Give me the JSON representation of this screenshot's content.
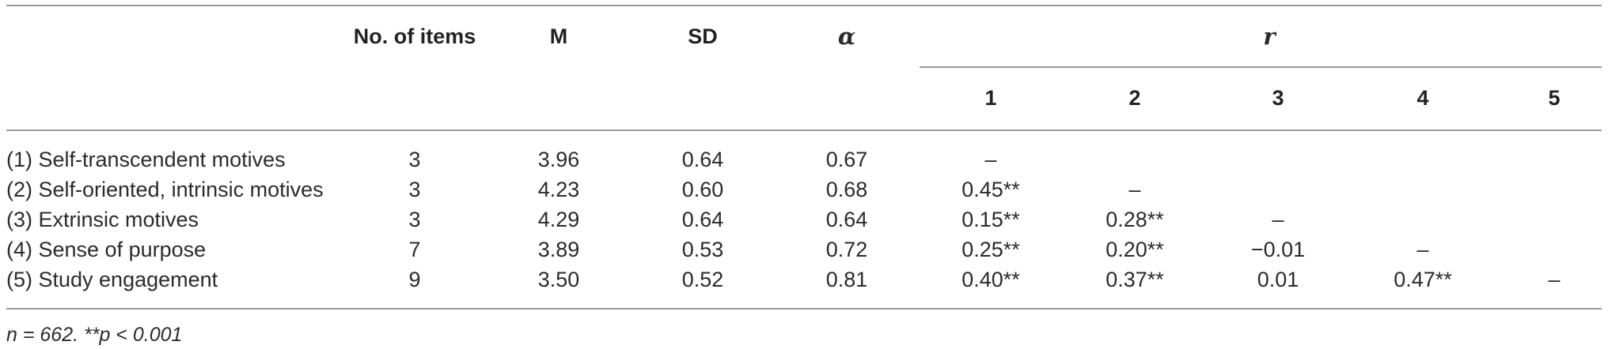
{
  "table": {
    "headers": {
      "items": "No. of items",
      "m": "M",
      "sd": "SD",
      "alpha": "α",
      "r": "r",
      "r_cols": [
        "1",
        "2",
        "3",
        "4",
        "5"
      ]
    },
    "rows": [
      {
        "label": "(1) Self-transcendent motives",
        "items": "3",
        "m": "3.96",
        "sd": "0.64",
        "alpha": "0.67",
        "r": [
          "–",
          "",
          "",
          "",
          ""
        ]
      },
      {
        "label": "(2) Self-oriented, intrinsic motives",
        "items": "3",
        "m": "4.23",
        "sd": "0.60",
        "alpha": "0.68",
        "r": [
          "0.45**",
          "–",
          "",
          "",
          ""
        ]
      },
      {
        "label": "(3) Extrinsic motives",
        "items": "3",
        "m": "4.29",
        "sd": "0.64",
        "alpha": "0.64",
        "r": [
          "0.15**",
          "0.28**",
          "–",
          "",
          ""
        ]
      },
      {
        "label": "(4) Sense of purpose",
        "items": "7",
        "m": "3.89",
        "sd": "0.53",
        "alpha": "0.72",
        "r": [
          "0.25**",
          "0.20**",
          "−0.01",
          "–",
          ""
        ]
      },
      {
        "label": "(5) Study engagement",
        "items": "9",
        "m": "3.50",
        "sd": "0.52",
        "alpha": "0.81",
        "r": [
          "0.40**",
          "0.37**",
          "0.01",
          "0.47**",
          "–"
        ]
      }
    ],
    "note": "n = 662. **p < 0.001"
  }
}
